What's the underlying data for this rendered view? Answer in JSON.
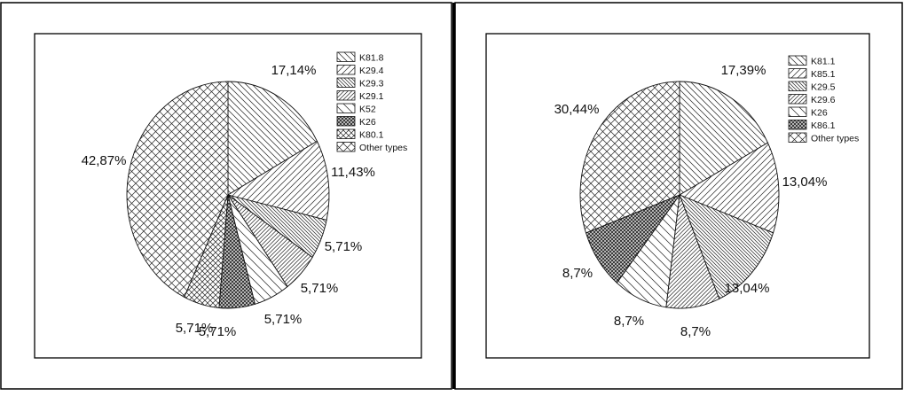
{
  "chart_data": [
    {
      "type": "pie",
      "legend_position": "top-right",
      "slices": [
        {
          "label": "K81.8",
          "value": 17.14,
          "value_label": "17,14%",
          "pattern": "diag-down"
        },
        {
          "label": "K29.4",
          "value": 11.43,
          "value_label": "11,43%",
          "pattern": "diag-up"
        },
        {
          "label": "K29.3",
          "value": 5.71,
          "value_label": "5,71%",
          "pattern": "dense-down"
        },
        {
          "label": "K29.1",
          "value": 5.71,
          "value_label": "5,71%",
          "pattern": "dense-up"
        },
        {
          "label": "K52",
          "value": 5.71,
          "value_label": "5,71%",
          "pattern": "wide-down"
        },
        {
          "label": "K26",
          "value": 5.71,
          "value_label": "5,71%",
          "pattern": "dark-cross"
        },
        {
          "label": "K80.1",
          "value": 5.71,
          "value_label": "5,71%",
          "pattern": "cross-small"
        },
        {
          "label": "Other types",
          "value": 42.87,
          "value_label": "42,87%",
          "pattern": "cross-large"
        }
      ]
    },
    {
      "type": "pie",
      "legend_position": "top-right",
      "slices": [
        {
          "label": "K81.1",
          "value": 17.39,
          "value_label": "17,39%",
          "pattern": "diag-down"
        },
        {
          "label": "K85.1",
          "value": 13.04,
          "value_label": "13,04%",
          "pattern": "diag-up"
        },
        {
          "label": "K29.5",
          "value": 13.04,
          "value_label": "13,04%",
          "pattern": "dense-down"
        },
        {
          "label": "K29.6",
          "value": 8.7,
          "value_label": "8,7%",
          "pattern": "dense-up"
        },
        {
          "label": "K26",
          "value": 8.7,
          "value_label": "8,7%",
          "pattern": "wide-down"
        },
        {
          "label": "K86.1",
          "value": 8.7,
          "value_label": "8,7%",
          "pattern": "dark-cross"
        },
        {
          "label": "Other types",
          "value": 30.44,
          "value_label": "30,44%",
          "pattern": "cross-large"
        }
      ]
    }
  ]
}
